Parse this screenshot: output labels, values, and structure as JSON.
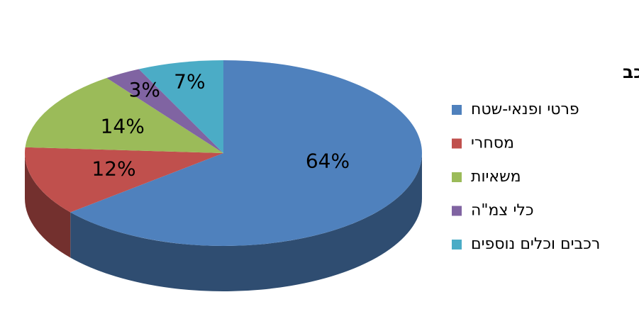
{
  "chart_data": {
    "type": "pie",
    "title": "גניבות לפי סוג רכב",
    "categories": [
      "פרטי ופנאי-שטח",
      "מסחרי",
      "משאיות",
      "כלי צמ\"ה",
      "רכבים וכלים נוספים"
    ],
    "values": [
      64,
      12,
      14,
      3,
      7
    ],
    "value_labels": [
      "64%",
      "12%",
      "14%",
      "3%",
      "7%"
    ],
    "colors": [
      "#4f81bd",
      "#c0504d",
      "#9bbb59",
      "#8064a2",
      "#4bacc6"
    ],
    "legend": "right"
  }
}
